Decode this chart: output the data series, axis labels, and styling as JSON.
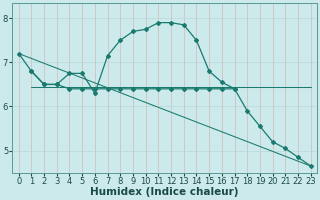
{
  "bg_color": "#cceaec",
  "line_color": "#1a7a6e",
  "grid_color": "#b8d8da",
  "xlabel": "Humidex (Indice chaleur)",
  "xlabel_fontsize": 7.5,
  "tick_fontsize": 6,
  "ylim": [
    4.5,
    8.35
  ],
  "xlim": [
    -0.5,
    23.5
  ],
  "yticks": [
    5,
    6,
    7,
    8
  ],
  "xticks": [
    0,
    1,
    2,
    3,
    4,
    5,
    6,
    7,
    8,
    9,
    10,
    11,
    12,
    13,
    14,
    15,
    16,
    17,
    18,
    19,
    20,
    21,
    22,
    23
  ],
  "series": [
    {
      "x": [
        0,
        1,
        2,
        3,
        4,
        5,
        6,
        7,
        8,
        9,
        10,
        11,
        12,
        13,
        14,
        15,
        16,
        17
      ],
      "y": [
        7.2,
        6.8,
        6.5,
        6.5,
        6.75,
        6.75,
        6.3,
        7.15,
        7.5,
        7.7,
        7.75,
        7.9,
        7.9,
        7.85,
        7.5,
        6.8,
        6.55,
        6.4
      ],
      "marker": "D",
      "markersize": 2,
      "linewidth": 0.9
    },
    {
      "x": [
        1,
        2,
        3,
        4,
        5,
        6,
        7,
        8,
        9,
        10,
        11,
        12,
        13,
        14,
        15,
        16,
        17,
        18,
        19,
        20,
        21,
        22,
        23
      ],
      "y": [
        6.8,
        6.5,
        6.5,
        6.4,
        6.4,
        6.4,
        6.4,
        6.4,
        6.4,
        6.4,
        6.4,
        6.4,
        6.4,
        6.4,
        6.4,
        6.4,
        6.4,
        5.9,
        5.55,
        5.2,
        5.05,
        4.85,
        4.65
      ],
      "marker": "D",
      "markersize": 2,
      "linewidth": 0.9
    },
    {
      "x": [
        1,
        18,
        19,
        20,
        21,
        22,
        23
      ],
      "y": [
        6.45,
        6.45,
        6.45,
        6.45,
        6.45,
        6.45,
        6.45
      ],
      "marker": null,
      "markersize": 0,
      "linewidth": 0.75
    },
    {
      "x": [
        0,
        23
      ],
      "y": [
        7.2,
        4.65
      ],
      "marker": null,
      "markersize": 0,
      "linewidth": 0.75
    }
  ]
}
